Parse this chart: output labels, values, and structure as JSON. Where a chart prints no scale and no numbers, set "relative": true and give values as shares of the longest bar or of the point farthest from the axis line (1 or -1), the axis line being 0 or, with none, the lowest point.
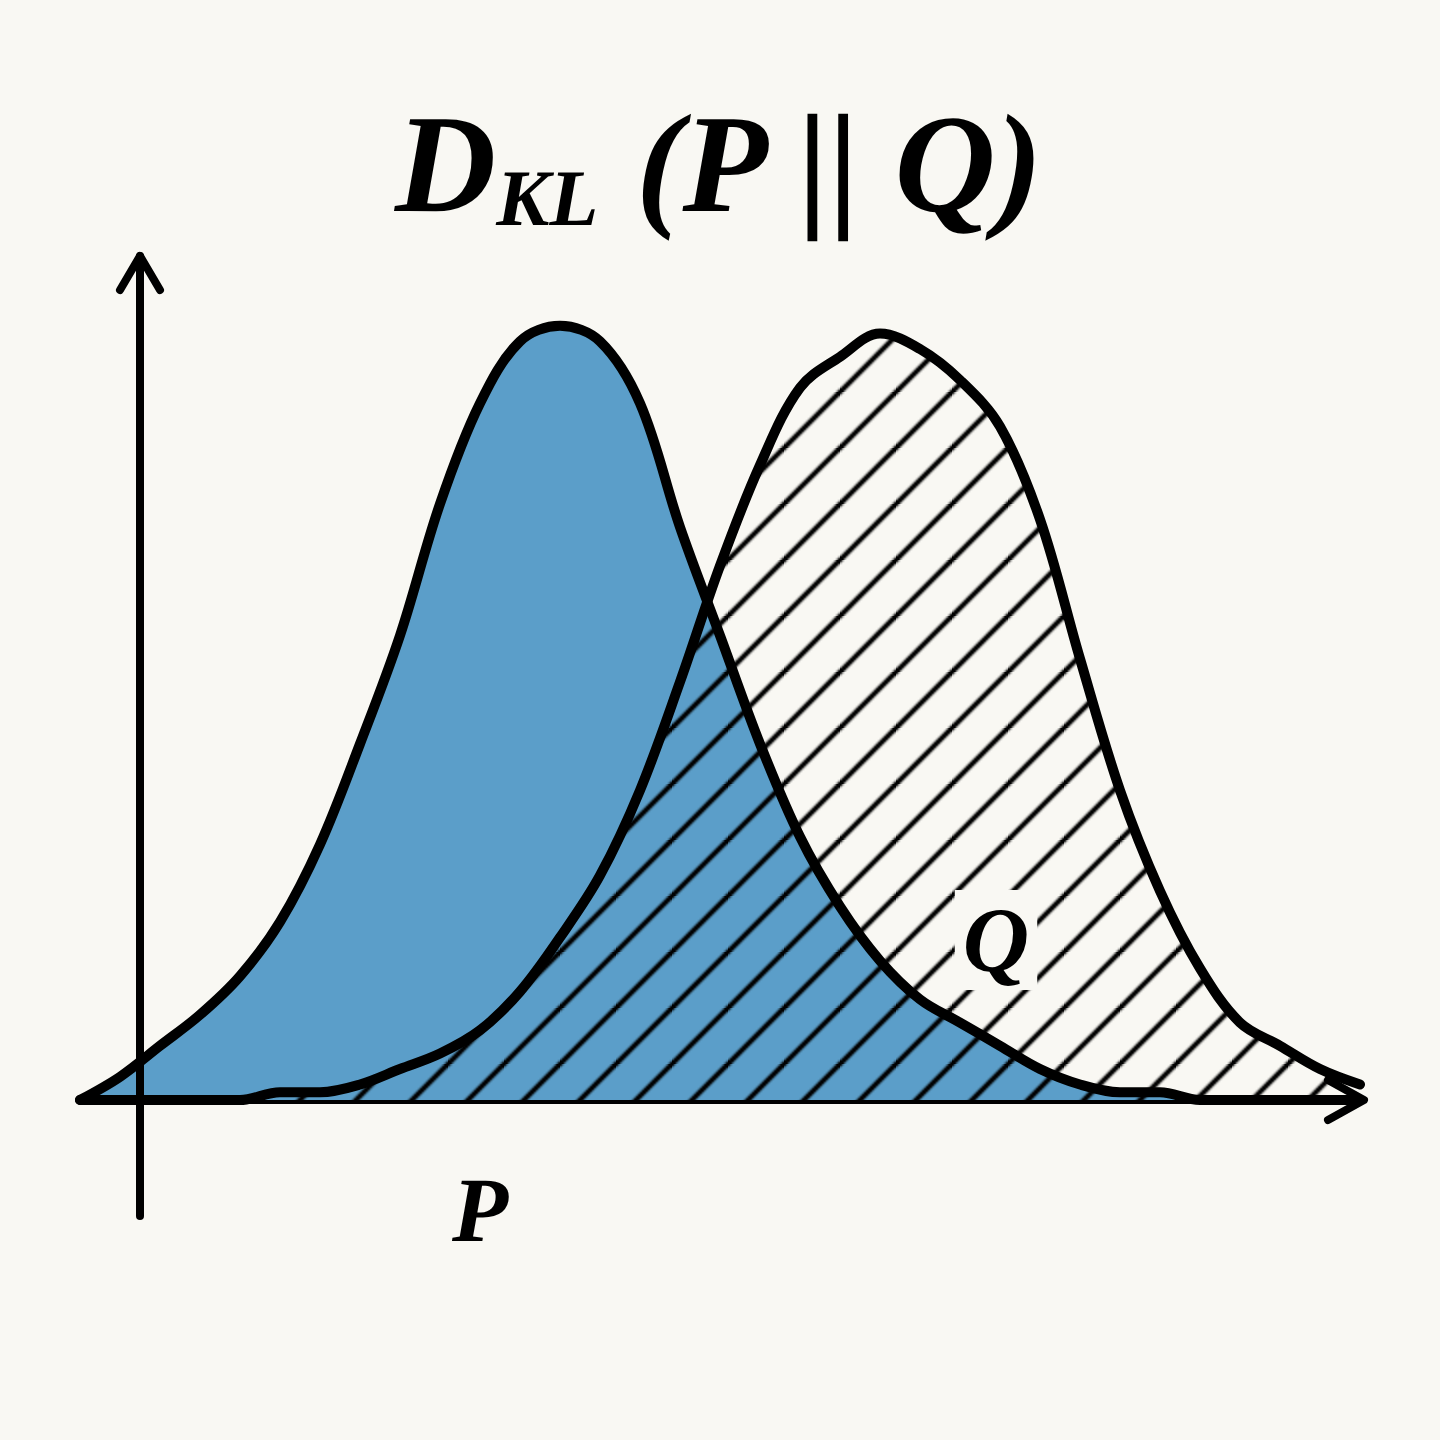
{
  "chart_data": {
    "type": "area",
    "title": "D$_{KL}$ (P || Q)",
    "relative": true,
    "legend": false,
    "grid": false,
    "marker": "none",
    "categories": [
      null,
      null,
      null,
      null,
      null,
      null,
      null,
      null,
      null,
      null,
      null,
      null,
      null,
      null,
      null,
      null,
      null,
      null,
      null,
      null,
      null,
      null,
      null,
      null,
      null,
      null,
      null,
      null,
      null,
      null,
      null,
      null,
      null
    ],
    "series": [
      {
        "name": "P",
        "color": "#5b9ec9",
        "values": [
          0,
          0.03,
          0.07,
          0.11,
          0.16,
          0.23,
          0.33,
          0.46,
          0.6,
          0.77,
          0.9,
          0.98,
          1,
          0.98,
          0.9,
          0.74,
          0.6,
          0.46,
          0.34,
          0.25,
          0.18,
          0.13,
          0.1,
          0.07,
          0.04,
          0.02,
          0.01,
          0.01,
          0,
          0,
          0,
          0,
          0
        ]
      },
      {
        "name": "Q",
        "color": "#000000",
        "values": [
          0,
          0,
          0,
          0,
          0,
          0.01,
          0.01,
          0.02,
          0.04,
          0.06,
          0.09,
          0.14,
          0.21,
          0.29,
          0.4,
          0.54,
          0.69,
          0.82,
          0.92,
          0.96,
          0.99,
          0.97,
          0.93,
          0.87,
          0.75,
          0.57,
          0.4,
          0.27,
          0.17,
          0.1,
          0.07,
          0.04,
          0.02
        ]
      }
    ]
  }
}
